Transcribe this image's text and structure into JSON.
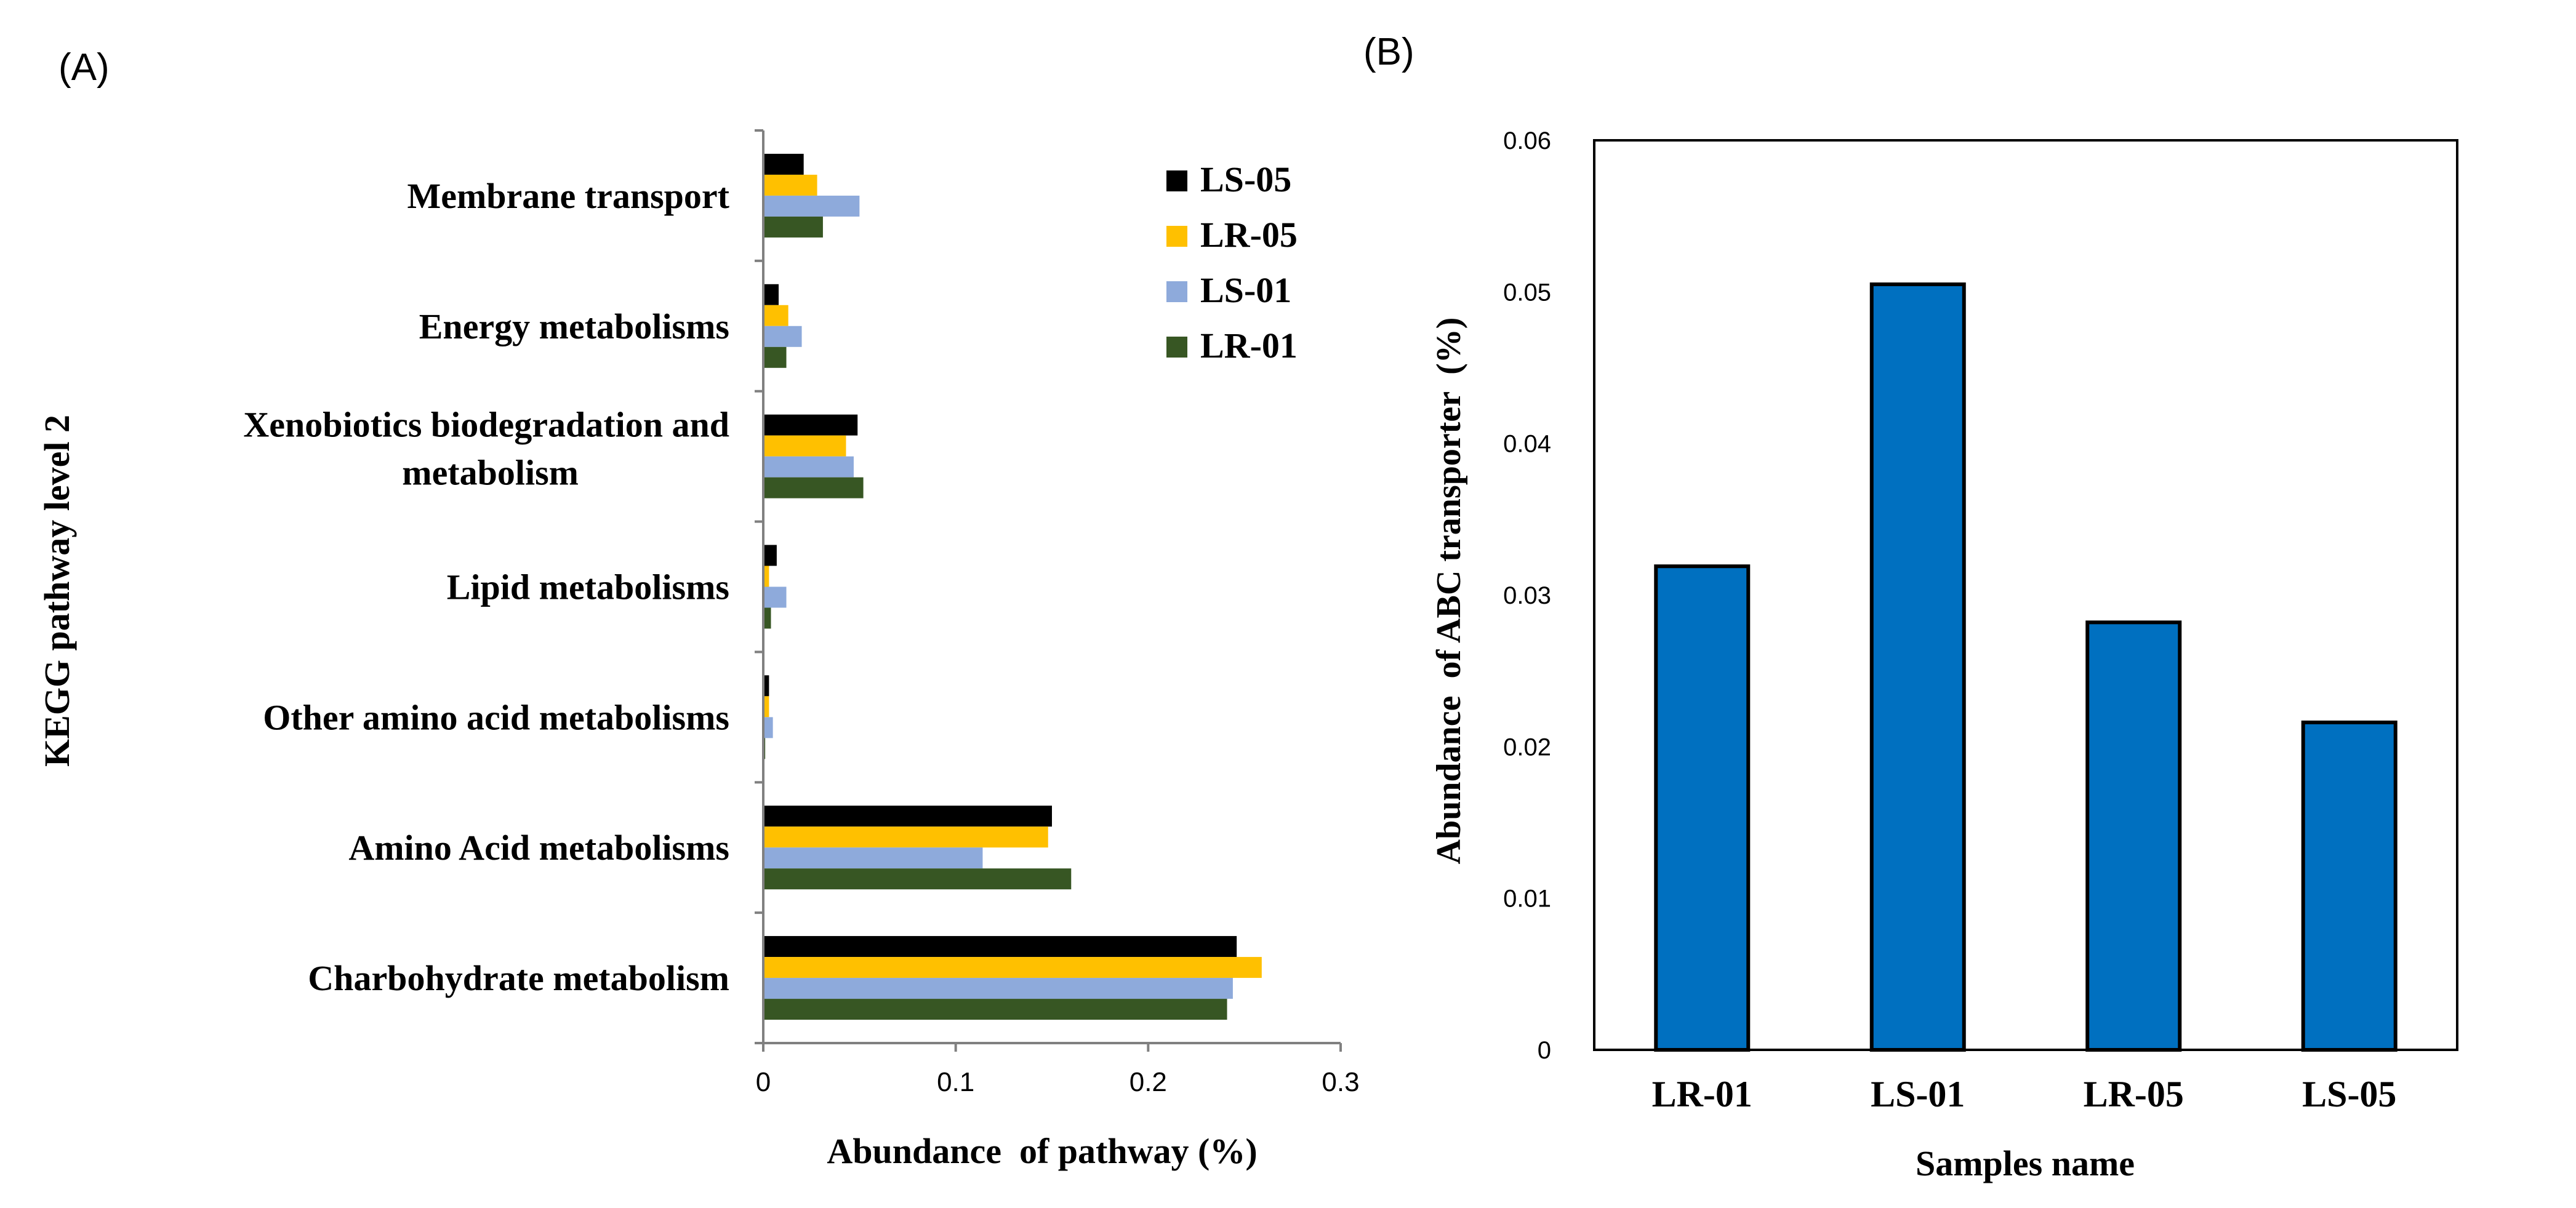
{
  "panels": {
    "a_label": "(A)",
    "b_label": "(B)"
  },
  "colors": {
    "LS-05": "#000000",
    "LR-05": "#ffc000",
    "LS-01": "#8eaadb",
    "LR-01": "#375623",
    "bar_b": "#0070c0",
    "axis": "#808080"
  },
  "chart_data": [
    {
      "id": "A",
      "type": "bar",
      "orientation": "horizontal",
      "title": "",
      "xlabel": "Abundance  of pathway (%)",
      "ylabel": "KEGG pathway level 2",
      "xlim": [
        0,
        0.3
      ],
      "xticks": [
        "0",
        "0.1",
        "0.2",
        "0.3"
      ],
      "grid": false,
      "legend_position": "top-right",
      "categories": [
        "Membrane transport",
        "Energy metabolisms",
        "Xenobiotics biodegradation and metabolism",
        "Lipid metabolisms",
        "Other amino acid metabolisms",
        "Amino Acid metabolisms",
        "Charbohydrate metabolism"
      ],
      "series": [
        {
          "name": "LS-05",
          "values": [
            0.021,
            0.008,
            0.049,
            0.007,
            0.003,
            0.15,
            0.246
          ]
        },
        {
          "name": "LR-05",
          "values": [
            0.028,
            0.013,
            0.043,
            0.003,
            0.003,
            0.148,
            0.259
          ]
        },
        {
          "name": "LS-01",
          "values": [
            0.05,
            0.02,
            0.047,
            0.012,
            0.005,
            0.114,
            0.244
          ]
        },
        {
          "name": "LR-01",
          "values": [
            0.031,
            0.012,
            0.052,
            0.004,
            0.001,
            0.16,
            0.241
          ]
        }
      ]
    },
    {
      "id": "B",
      "type": "bar",
      "orientation": "vertical",
      "title": "",
      "xlabel": "Samples name",
      "ylabel": "Abundance  of ABC transporter  (%)",
      "ylim": [
        0,
        0.06
      ],
      "yticks": [
        "0",
        "0.01",
        "0.02",
        "0.03",
        "0.04",
        "0.05",
        "0.06"
      ],
      "grid": false,
      "categories": [
        "LR-01",
        "LS-01",
        "LR-05",
        "LS-05"
      ],
      "values": [
        0.0319,
        0.0505,
        0.0282,
        0.0216
      ]
    }
  ]
}
